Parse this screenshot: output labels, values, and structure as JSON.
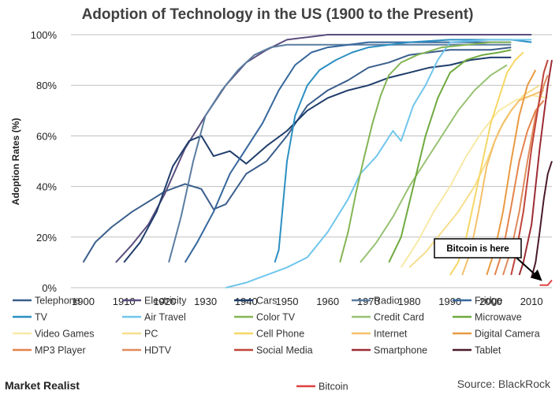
{
  "brand": "Market Realist",
  "source": "Source: BlackRock",
  "chart_data": {
    "type": "line",
    "title": "Adoption of Technology in the US (1900 to the Present)",
    "xlabel": "",
    "ylabel": "Adoption Rates (%)",
    "xlim": [
      1897,
      2015
    ],
    "ylim": [
      0,
      100
    ],
    "x_ticks": [
      "1900",
      "1910",
      "1920",
      "1930",
      "1940",
      "1950",
      "1960",
      "1970",
      "1980",
      "1990",
      "2000",
      "2010"
    ],
    "y_ticks": [
      "0%",
      "20%",
      "40%",
      "60%",
      "80%",
      "100%"
    ],
    "grid": "horizontal",
    "legend_position": "bottom",
    "annotation": {
      "text": "Bitcoin is here",
      "x": 2013,
      "y": 1
    },
    "series": [
      {
        "name": "Telephone",
        "color": "#3A5E8C",
        "points": [
          [
            1900,
            10
          ],
          [
            1903,
            18
          ],
          [
            1907,
            24
          ],
          [
            1912,
            30
          ],
          [
            1917,
            35
          ],
          [
            1920,
            38
          ],
          [
            1925,
            41
          ],
          [
            1929,
            39
          ],
          [
            1932,
            31
          ],
          [
            1935,
            33
          ],
          [
            1940,
            45
          ],
          [
            1945,
            50
          ],
          [
            1950,
            60
          ],
          [
            1955,
            72
          ],
          [
            1960,
            78
          ],
          [
            1965,
            82
          ],
          [
            1970,
            87
          ],
          [
            1975,
            89
          ],
          [
            1980,
            92
          ],
          [
            1985,
            93
          ],
          [
            1990,
            94
          ],
          [
            1995,
            94
          ],
          [
            2000,
            94
          ],
          [
            2005,
            95
          ]
        ]
      },
      {
        "name": "Electricity",
        "color": "#5A4E7E",
        "points": [
          [
            1908,
            10
          ],
          [
            1912,
            17
          ],
          [
            1916,
            25
          ],
          [
            1920,
            37
          ],
          [
            1925,
            55
          ],
          [
            1930,
            68
          ],
          [
            1935,
            80
          ],
          [
            1940,
            89
          ],
          [
            1945,
            94
          ],
          [
            1950,
            98
          ],
          [
            1955,
            99
          ],
          [
            1960,
            100
          ],
          [
            2010,
            100
          ]
        ]
      },
      {
        "name": "Cars",
        "color": "#1F3D6B",
        "points": [
          [
            1910,
            10
          ],
          [
            1914,
            18
          ],
          [
            1918,
            30
          ],
          [
            1922,
            48
          ],
          [
            1926,
            58
          ],
          [
            1929,
            60
          ],
          [
            1932,
            52
          ],
          [
            1936,
            54
          ],
          [
            1940,
            49
          ],
          [
            1945,
            56
          ],
          [
            1950,
            62
          ],
          [
            1955,
            70
          ],
          [
            1960,
            75
          ],
          [
            1965,
            78
          ],
          [
            1970,
            80
          ],
          [
            1975,
            83
          ],
          [
            1980,
            85
          ],
          [
            1985,
            87
          ],
          [
            1990,
            88
          ],
          [
            1995,
            90
          ],
          [
            2000,
            91
          ],
          [
            2005,
            91
          ]
        ]
      },
      {
        "name": "Radio",
        "color": "#5B7DA0",
        "points": [
          [
            1921,
            10
          ],
          [
            1924,
            28
          ],
          [
            1927,
            50
          ],
          [
            1930,
            68
          ],
          [
            1934,
            78
          ],
          [
            1938,
            86
          ],
          [
            1942,
            92
          ],
          [
            1946,
            95
          ],
          [
            1950,
            96
          ],
          [
            1960,
            96
          ],
          [
            2005,
            96
          ]
        ]
      },
      {
        "name": "Fridge",
        "color": "#35679C",
        "points": [
          [
            1925,
            10
          ],
          [
            1928,
            18
          ],
          [
            1932,
            30
          ],
          [
            1936,
            45
          ],
          [
            1940,
            55
          ],
          [
            1944,
            65
          ],
          [
            1948,
            78
          ],
          [
            1952,
            88
          ],
          [
            1956,
            93
          ],
          [
            1960,
            95
          ],
          [
            1970,
            97
          ],
          [
            2005,
            97
          ]
        ]
      },
      {
        "name": "TV",
        "color": "#2C8FC2",
        "points": [
          [
            1947,
            10
          ],
          [
            1948,
            15
          ],
          [
            1950,
            50
          ],
          [
            1952,
            68
          ],
          [
            1955,
            80
          ],
          [
            1958,
            86
          ],
          [
            1962,
            90
          ],
          [
            1966,
            93
          ],
          [
            1970,
            95
          ],
          [
            1980,
            97
          ],
          [
            1990,
            98
          ],
          [
            2005,
            98
          ],
          [
            2010,
            97
          ]
        ]
      },
      {
        "name": "Air Travel",
        "color": "#70C6EC",
        "points": [
          [
            1935,
            0
          ],
          [
            1940,
            2
          ],
          [
            1945,
            5
          ],
          [
            1950,
            8
          ],
          [
            1955,
            12
          ],
          [
            1960,
            22
          ],
          [
            1965,
            35
          ],
          [
            1968,
            45
          ],
          [
            1972,
            52
          ],
          [
            1976,
            62
          ],
          [
            1978,
            58
          ],
          [
            1981,
            72
          ],
          [
            1984,
            80
          ],
          [
            1987,
            90
          ],
          [
            1990,
            97
          ],
          [
            2000,
            98
          ],
          [
            2010,
            98
          ]
        ]
      },
      {
        "name": "Color TV",
        "color": "#84B554",
        "points": [
          [
            1963,
            10
          ],
          [
            1965,
            22
          ],
          [
            1967,
            38
          ],
          [
            1969,
            52
          ],
          [
            1971,
            65
          ],
          [
            1973,
            76
          ],
          [
            1975,
            84
          ],
          [
            1978,
            89
          ],
          [
            1982,
            92
          ],
          [
            1988,
            95
          ],
          [
            2000,
            97
          ],
          [
            2005,
            97
          ]
        ]
      },
      {
        "name": "Credit Card",
        "color": "#99C274",
        "points": [
          [
            1968,
            10
          ],
          [
            1972,
            18
          ],
          [
            1976,
            28
          ],
          [
            1980,
            40
          ],
          [
            1984,
            50
          ],
          [
            1988,
            60
          ],
          [
            1992,
            70
          ],
          [
            1996,
            78
          ],
          [
            2000,
            84
          ],
          [
            2004,
            88
          ]
        ]
      },
      {
        "name": "Microwave",
        "color": "#6FAA3E",
        "points": [
          [
            1975,
            10
          ],
          [
            1978,
            20
          ],
          [
            1981,
            40
          ],
          [
            1984,
            60
          ],
          [
            1987,
            75
          ],
          [
            1990,
            85
          ],
          [
            1994,
            90
          ],
          [
            1998,
            92
          ],
          [
            2002,
            93
          ],
          [
            2005,
            94
          ]
        ]
      },
      {
        "name": "Video Games",
        "color": "#F8E9A5",
        "points": [
          [
            1978,
            8
          ],
          [
            1982,
            18
          ],
          [
            1986,
            30
          ],
          [
            1990,
            40
          ],
          [
            1994,
            52
          ],
          [
            1998,
            62
          ],
          [
            2002,
            70
          ],
          [
            2006,
            74
          ],
          [
            2010,
            76
          ],
          [
            2014,
            75
          ]
        ]
      },
      {
        "name": "PC",
        "color": "#F6DE8C",
        "points": [
          [
            1980,
            8
          ],
          [
            1984,
            14
          ],
          [
            1988,
            22
          ],
          [
            1992,
            30
          ],
          [
            1996,
            40
          ],
          [
            1999,
            50
          ],
          [
            2002,
            62
          ],
          [
            2005,
            70
          ],
          [
            2008,
            76
          ],
          [
            2012,
            80
          ]
        ]
      },
      {
        "name": "Cell Phone",
        "color": "#F6D765",
        "points": [
          [
            1990,
            5
          ],
          [
            1992,
            10
          ],
          [
            1994,
            20
          ],
          [
            1996,
            35
          ],
          [
            1998,
            50
          ],
          [
            2000,
            65
          ],
          [
            2002,
            75
          ],
          [
            2004,
            85
          ],
          [
            2006,
            90
          ],
          [
            2008,
            93
          ]
        ]
      },
      {
        "name": "Internet",
        "color": "#F3C06B",
        "points": [
          [
            1993,
            5
          ],
          [
            1995,
            14
          ],
          [
            1997,
            30
          ],
          [
            1999,
            48
          ],
          [
            2001,
            58
          ],
          [
            2003,
            65
          ],
          [
            2005,
            70
          ],
          [
            2007,
            74
          ],
          [
            2010,
            76
          ],
          [
            2013,
            78
          ]
        ]
      },
      {
        "name": "Digital Camera",
        "color": "#E99A42",
        "points": [
          [
            1999,
            5
          ],
          [
            2001,
            15
          ],
          [
            2003,
            30
          ],
          [
            2005,
            50
          ],
          [
            2007,
            68
          ],
          [
            2009,
            80
          ],
          [
            2011,
            86
          ]
        ]
      },
      {
        "name": "MP3 Player",
        "color": "#E4834C",
        "points": [
          [
            2001,
            5
          ],
          [
            2003,
            15
          ],
          [
            2005,
            32
          ],
          [
            2007,
            50
          ],
          [
            2009,
            62
          ],
          [
            2011,
            70
          ],
          [
            2013,
            74
          ]
        ]
      },
      {
        "name": "HDTV",
        "color": "#E08A5C",
        "points": [
          [
            2003,
            5
          ],
          [
            2005,
            15
          ],
          [
            2007,
            30
          ],
          [
            2009,
            50
          ],
          [
            2011,
            68
          ],
          [
            2013,
            80
          ],
          [
            2014,
            84
          ]
        ]
      },
      {
        "name": "Social Media",
        "color": "#C0443A",
        "points": [
          [
            2005,
            5
          ],
          [
            2006,
            12
          ],
          [
            2008,
            30
          ],
          [
            2010,
            55
          ],
          [
            2012,
            75
          ],
          [
            2013,
            85
          ],
          [
            2014,
            90
          ]
        ]
      },
      {
        "name": "Smartphone",
        "color": "#9C2C34",
        "points": [
          [
            2007,
            5
          ],
          [
            2008,
            10
          ],
          [
            2010,
            25
          ],
          [
            2011,
            40
          ],
          [
            2012,
            55
          ],
          [
            2013,
            68
          ],
          [
            2014,
            80
          ],
          [
            2015,
            90
          ]
        ]
      },
      {
        "name": "Tablet",
        "color": "#4A1A2A",
        "points": [
          [
            2010,
            4
          ],
          [
            2011,
            10
          ],
          [
            2012,
            22
          ],
          [
            2013,
            35
          ],
          [
            2014,
            45
          ],
          [
            2015,
            50
          ]
        ]
      },
      {
        "name": "Bitcoin",
        "color": "#E04040",
        "points": [
          [
            2012,
            1
          ],
          [
            2014,
            1
          ],
          [
            2015,
            3
          ]
        ]
      }
    ]
  }
}
